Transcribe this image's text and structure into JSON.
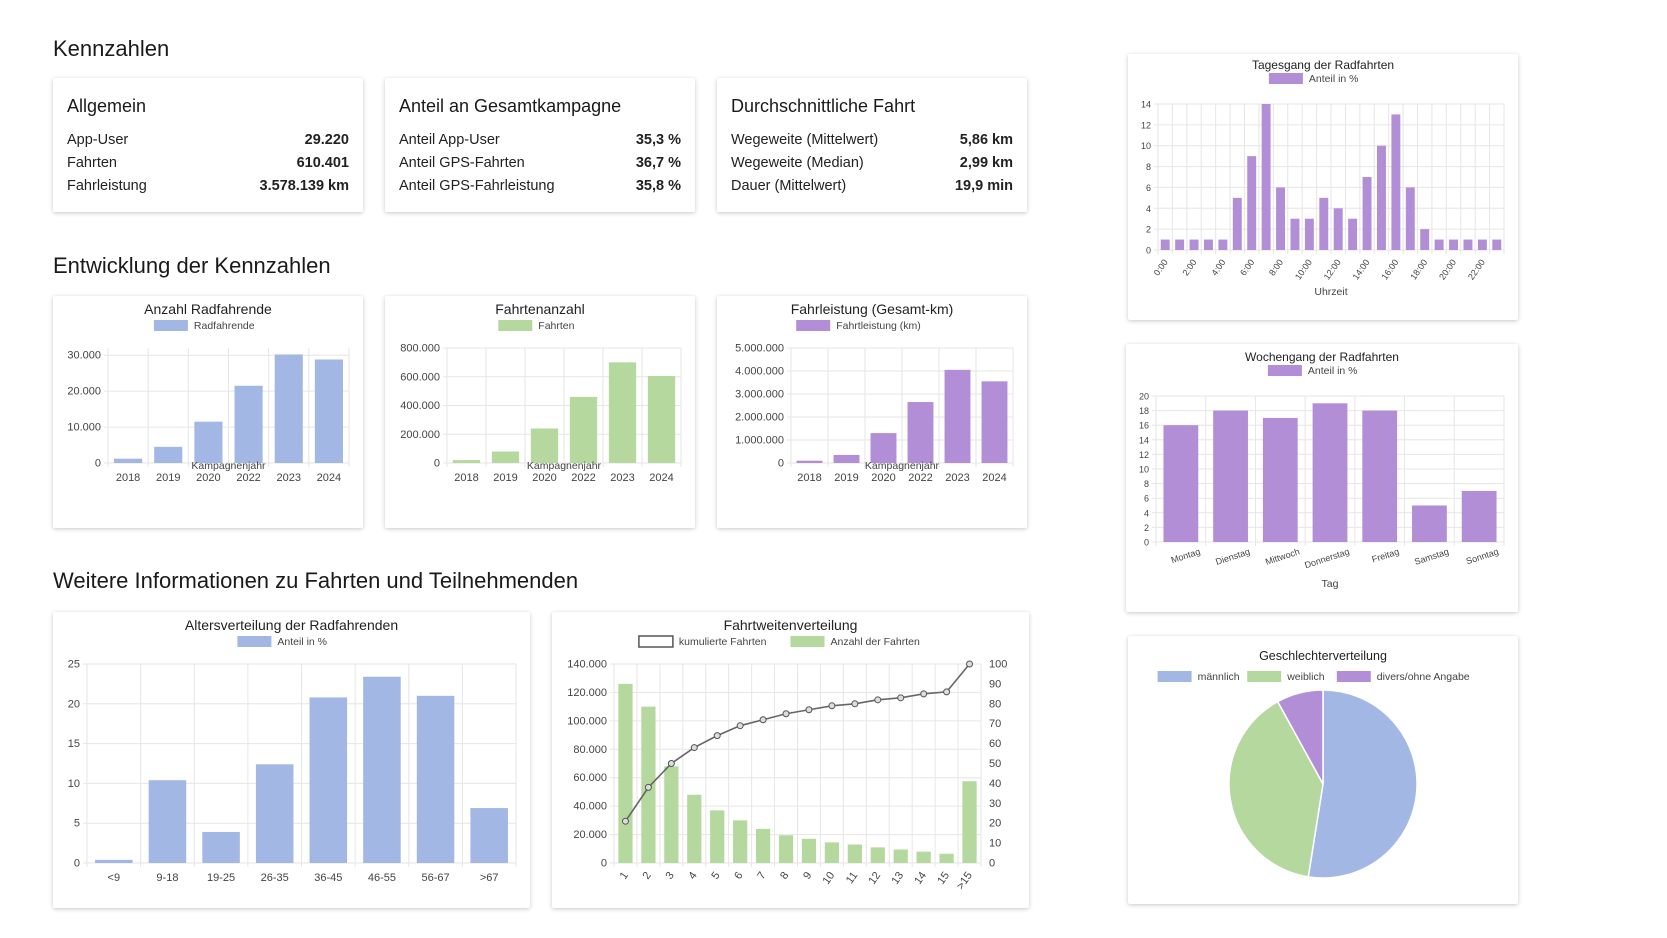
{
  "sections": {
    "kennzahlen": "Kennzahlen",
    "entwicklung": "Entwicklung der Kennzahlen",
    "weitere": "Weitere Informationen zu Fahrten und Teilnehmenden"
  },
  "kpis": [
    {
      "title": "Allgemein",
      "rows": [
        {
          "label": "App-User",
          "value": "29.220"
        },
        {
          "label": "Fahrten",
          "value": "610.401"
        },
        {
          "label": "Fahrleistung",
          "value": "3.578.139 km"
        }
      ]
    },
    {
      "title": "Anteil an Gesamtkampagne",
      "rows": [
        {
          "label": "Anteil App-User",
          "value": "35,3 %"
        },
        {
          "label": "Anteil GPS-Fahrten",
          "value": "36,7 %"
        },
        {
          "label": "Anteil GPS-Fahrleistung",
          "value": "35,8 %"
        }
      ]
    },
    {
      "title": "Durchschnittliche Fahrt",
      "rows": [
        {
          "label": "Wegeweite (Mittelwert)",
          "value": "5,86 km"
        },
        {
          "label": "Wegeweite (Median)",
          "value": "2,99 km"
        },
        {
          "label": "Dauer (Mittelwert)",
          "value": "19,9 min"
        }
      ]
    }
  ],
  "colors": {
    "blue": "#a2b7e4",
    "green": "#b5d89e",
    "purple": "#b28ed6",
    "grid": "#e6e6e6",
    "axis": "#555555"
  },
  "chart_data": [
    {
      "id": "radfahrende",
      "type": "bar",
      "title": "Anzahl Radfahrende",
      "color": "blue",
      "legend": [
        "Radfahrende"
      ],
      "xlabel": "Kampagnenjahr",
      "categories": [
        "2018",
        "2019",
        "2020",
        "2022",
        "2023",
        "2024"
      ],
      "values": [
        1200,
        4500,
        11500,
        21500,
        30200,
        28800
      ],
      "ylim": [
        0,
        32000
      ],
      "ticks": [
        0,
        10000,
        20000,
        30000
      ],
      "tick_labels": [
        "0",
        "10.000",
        "20.000",
        "30.000"
      ]
    },
    {
      "id": "fahrtenanzahl",
      "type": "bar",
      "title": "Fahrtenanzahl",
      "color": "green",
      "legend": [
        "Fahrten"
      ],
      "xlabel": "Kampagnenjahr",
      "categories": [
        "2018",
        "2019",
        "2020",
        "2022",
        "2023",
        "2024"
      ],
      "values": [
        20000,
        80000,
        240000,
        460000,
        700000,
        605000
      ],
      "ylim": [
        0,
        800000
      ],
      "ticks": [
        0,
        200000,
        400000,
        600000,
        800000
      ],
      "tick_labels": [
        "0",
        "200.000",
        "400.000",
        "600.000",
        "800.000"
      ]
    },
    {
      "id": "fahrleistung",
      "type": "bar",
      "title": "Fahrleistung (Gesamt-km)",
      "color": "purple",
      "legend": [
        "Fahrtleistung (km)"
      ],
      "xlabel": "Kampagnenjahr",
      "categories": [
        "2018",
        "2019",
        "2020",
        "2022",
        "2023",
        "2024"
      ],
      "values": [
        100000,
        350000,
        1300000,
        2650000,
        4050000,
        3550000
      ],
      "ylim": [
        0,
        5000000
      ],
      "ticks": [
        0,
        1000000,
        2000000,
        3000000,
        4000000,
        5000000
      ],
      "tick_labels": [
        "0",
        "1.000.000",
        "2.000.000",
        "3.000.000",
        "4.000.000",
        "5.000.000"
      ]
    },
    {
      "id": "alter",
      "type": "bar",
      "title": "Altersverteilung der Radfahrenden",
      "color": "blue",
      "legend": [
        "Anteil in %"
      ],
      "categories": [
        "<9",
        "9-18",
        "19-25",
        "26-35",
        "36-45",
        "46-55",
        "56-67",
        ">67"
      ],
      "values": [
        0.4,
        10.4,
        3.9,
        12.4,
        20.8,
        23.4,
        21.0,
        6.9
      ],
      "ylim": [
        0,
        25
      ],
      "ticks": [
        0,
        5,
        10,
        15,
        20,
        25
      ],
      "tick_labels": [
        "0",
        "5",
        "10",
        "15",
        "20",
        "25"
      ]
    },
    {
      "id": "fahrtweiten",
      "type": "bar",
      "title": "Fahrtweitenverteilung",
      "legend": [
        "kumulierte Fahrten",
        "Anzahl der Fahrten"
      ],
      "categories": [
        "1",
        "2",
        "3",
        "4",
        "5",
        "6",
        "7",
        "8",
        "9",
        "10",
        "11",
        "12",
        "13",
        "14",
        "15",
        ">15"
      ],
      "bars": [
        126000,
        110000,
        68000,
        48000,
        37000,
        30000,
        24000,
        19500,
        17000,
        14500,
        13000,
        11000,
        9500,
        8000,
        6500,
        57500
      ],
      "line": [
        21,
        38,
        50,
        58,
        64,
        69,
        72,
        75,
        77,
        79,
        80,
        82,
        83,
        85,
        86,
        100
      ],
      "ylim": [
        0,
        140000
      ],
      "ticks": [
        0,
        20000,
        40000,
        60000,
        80000,
        100000,
        120000,
        140000
      ],
      "tick_labels": [
        "0",
        "20.000",
        "40.000",
        "60.000",
        "80.000",
        "100.000",
        "120.000",
        "140.000"
      ],
      "y2lim": [
        0,
        100
      ],
      "y2ticks": [
        0,
        10,
        20,
        30,
        40,
        50,
        60,
        70,
        80,
        90,
        100
      ],
      "y2tick_labels": [
        "0",
        "10",
        "20",
        "30",
        "40",
        "50",
        "60",
        "70",
        "80",
        "90",
        "100"
      ]
    },
    {
      "id": "tagesgang",
      "type": "bar",
      "title": "Tagesgang der Radfahrten",
      "color": "purple",
      "legend": [
        "Anteil in %"
      ],
      "xlabel": "Uhrzeit",
      "categories": [
        "0:00",
        "1:00",
        "2:00",
        "3:00",
        "4:00",
        "5:00",
        "6:00",
        "7:00",
        "8:00",
        "9:00",
        "10:00",
        "11:00",
        "12:00",
        "13:00",
        "14:00",
        "15:00",
        "16:00",
        "17:00",
        "18:00",
        "19:00",
        "20:00",
        "21:00",
        "22:00",
        "23:00"
      ],
      "tick_labels_x": [
        "0:00",
        "2:00",
        "4:00",
        "6:00",
        "8:00",
        "10:00",
        "12:00",
        "14:00",
        "16:00",
        "18:00",
        "20:00",
        "22:00"
      ],
      "values": [
        1,
        1,
        1,
        1,
        1,
        5,
        9,
        14,
        6,
        3,
        3,
        5,
        4,
        3,
        7,
        10,
        13,
        6,
        2,
        1,
        1,
        1,
        1,
        1
      ],
      "ylim": [
        0,
        14
      ],
      "ticks": [
        0,
        2,
        4,
        6,
        8,
        10,
        12,
        14
      ],
      "tick_labels": [
        "0",
        "2",
        "4",
        "6",
        "8",
        "10",
        "12",
        "14"
      ]
    },
    {
      "id": "wochengang",
      "type": "bar",
      "title": "Wochengang der Radfahrten",
      "color": "purple",
      "legend": [
        "Anteil in %"
      ],
      "xlabel": "Tag",
      "categories": [
        "Montag",
        "Dienstag",
        "Mittwoch",
        "Donnerstag",
        "Freitag",
        "Samstag",
        "Sonntag"
      ],
      "values": [
        16,
        18,
        17,
        19,
        18,
        5,
        7
      ],
      "ylim": [
        0,
        20
      ],
      "ticks": [
        0,
        2,
        4,
        6,
        8,
        10,
        12,
        14,
        16,
        18,
        20
      ],
      "tick_labels": [
        "0",
        "2",
        "4",
        "6",
        "8",
        "10",
        "12",
        "14",
        "16",
        "18",
        "20"
      ]
    },
    {
      "id": "geschlecht",
      "type": "pie",
      "title": "Geschlechterverteilung",
      "labels": [
        "männlich",
        "weiblich",
        "divers/ohne Angabe"
      ],
      "values": [
        52.5,
        39.5,
        8.0
      ],
      "colors": [
        "blue",
        "green",
        "purple"
      ]
    }
  ]
}
